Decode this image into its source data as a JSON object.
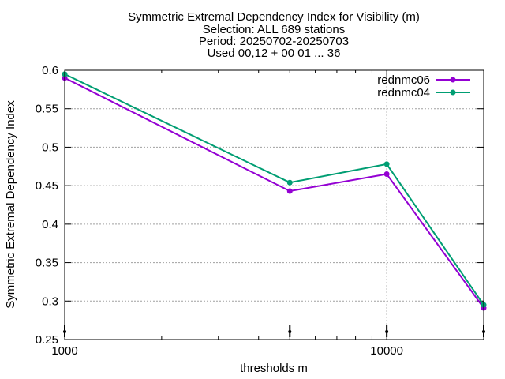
{
  "chart_data": {
    "type": "line",
    "title": [
      "Symmetric Extremal Dependency Index  for Visibility (m)",
      "Selection: ALL    689 stations",
      "Period: 20250702-20250703",
      "Used 00,12 + 00 01 ... 36"
    ],
    "xlabel": "thresholds m",
    "ylabel": "Symmetric Extremal Dependency Index",
    "xscale": "log",
    "xlim": [
      1000,
      20000
    ],
    "ylim": [
      0.25,
      0.6
    ],
    "xticks_labeled": [
      {
        "value": 1000,
        "label": "1000"
      },
      {
        "value": 10000,
        "label": "10000"
      }
    ],
    "yticks": [
      {
        "value": 0.25,
        "label": "0.25"
      },
      {
        "value": 0.3,
        "label": "0.3"
      },
      {
        "value": 0.35,
        "label": "0.35"
      },
      {
        "value": 0.4,
        "label": "0.4"
      },
      {
        "value": 0.45,
        "label": "0.45"
      },
      {
        "value": 0.5,
        "label": "0.5"
      },
      {
        "value": 0.55,
        "label": "0.55"
      },
      {
        "value": 0.6,
        "label": "0.6"
      }
    ],
    "x_markers": [
      1000,
      5000,
      10000,
      20000
    ],
    "grid": true,
    "legend_position": "top-right",
    "series": [
      {
        "name": "rednmc06",
        "color": "#9400d3",
        "x": [
          1000,
          5000,
          10000,
          20000
        ],
        "y": [
          0.59,
          0.443,
          0.465,
          0.291
        ]
      },
      {
        "name": "rednmc04",
        "color": "#009e73",
        "x": [
          1000,
          5000,
          10000,
          20000
        ],
        "y": [
          0.595,
          0.454,
          0.478,
          0.295
        ]
      }
    ]
  }
}
